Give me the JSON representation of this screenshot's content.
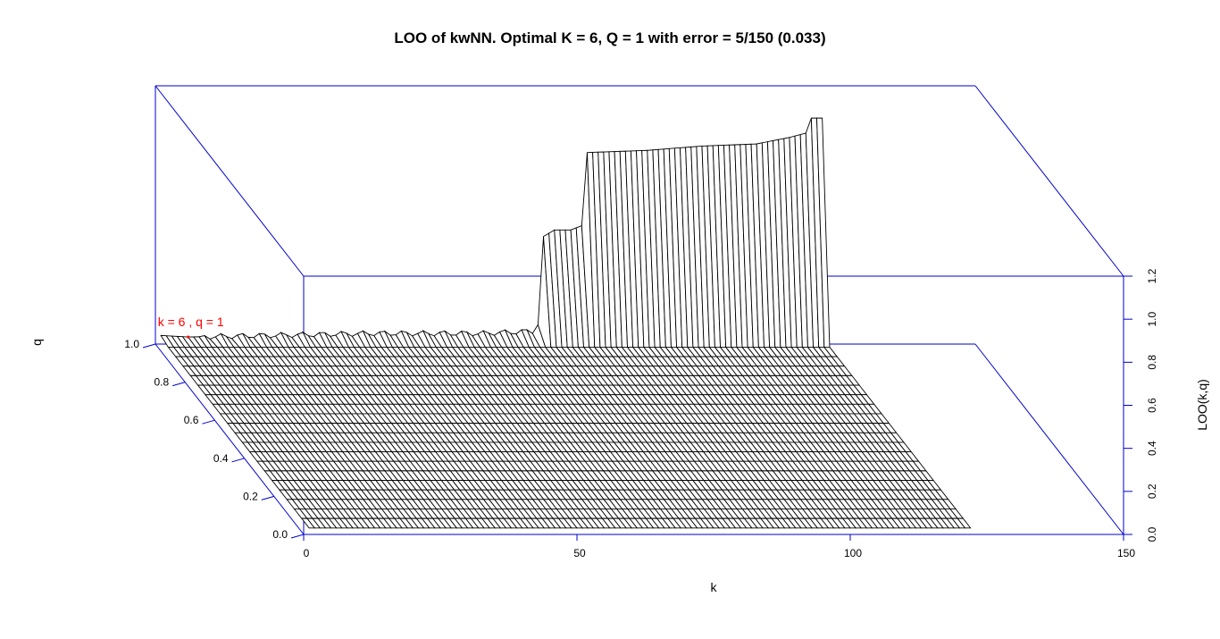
{
  "chart_data": {
    "type": "surface",
    "title": "LOO of kwNN. Optimal K = 6, Q = 1 with error = 5/150 (0.033)",
    "xlabel": "k",
    "ylabel": "q",
    "zlabel": "LOO(k,q)",
    "xlim": [
      0,
      150
    ],
    "ylim": [
      0.0,
      1.0
    ],
    "zlim": [
      0.0,
      1.2
    ],
    "x_ticks": [
      "0",
      "50",
      "100",
      "150"
    ],
    "y_ticks": [
      "0.0",
      "0.2",
      "0.4",
      "0.6",
      "0.8",
      "1.0"
    ],
    "z_ticks": [
      "0.0",
      "0.2",
      "0.4",
      "0.6",
      "0.8",
      "1.0",
      "1.2"
    ],
    "k_range": [
      1,
      122
    ],
    "q_levels": 21,
    "loo_at_q1": [
      {
        "k": 1,
        "loo": 0.04
      },
      {
        "k": 6,
        "loo": 0.033
      },
      {
        "k": 20,
        "loo": 0.04
      },
      {
        "k": 40,
        "loo": 0.05
      },
      {
        "k": 60,
        "loo": 0.05
      },
      {
        "k": 69,
        "loo": 0.06
      },
      {
        "k": 70,
        "loo": 0.09
      },
      {
        "k": 71,
        "loo": 0.5
      },
      {
        "k": 73,
        "loo": 0.53
      },
      {
        "k": 76,
        "loo": 0.53
      },
      {
        "k": 78,
        "loo": 0.55
      },
      {
        "k": 79,
        "loo": 0.89
      },
      {
        "k": 90,
        "loo": 0.9
      },
      {
        "k": 100,
        "loo": 0.92
      },
      {
        "k": 110,
        "loo": 0.93
      },
      {
        "k": 116,
        "loo": 0.96
      },
      {
        "k": 119,
        "loo": 0.98
      },
      {
        "k": 120,
        "loo": 1.05
      },
      {
        "k": 122,
        "loo": 1.05
      }
    ],
    "loo_at_q_below_1": 0.03,
    "optimum": {
      "k": 6,
      "q": 1,
      "label": "k = 6 , q = 1",
      "color": "#ff0000"
    },
    "box_color": "#0000cc",
    "surface_line_color": "#000000",
    "surface_fill_color": "#ffffff"
  }
}
